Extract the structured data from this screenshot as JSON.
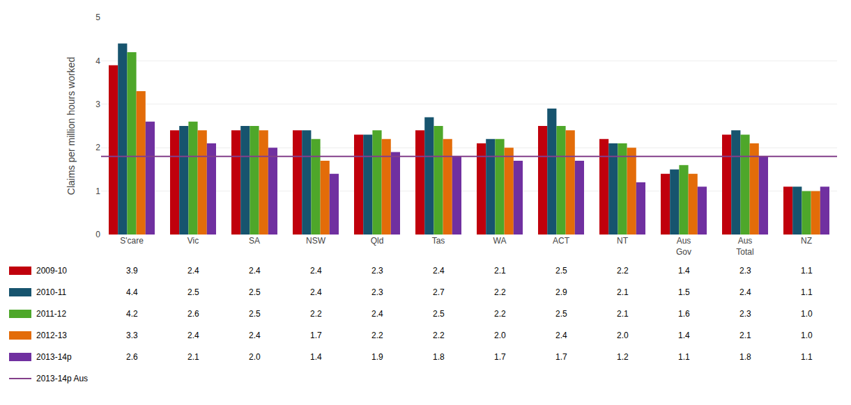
{
  "chart_data": {
    "type": "bar",
    "categories": [
      "S'care",
      "Vic",
      "SA",
      "NSW",
      "Qld",
      "Tas",
      "WA",
      "ACT",
      "NT",
      "Aus\nGov",
      "Aus\nTotal",
      "NZ"
    ],
    "series": [
      {
        "name": "2009-10",
        "color": "#C0000C",
        "values": [
          3.9,
          2.4,
          2.4,
          2.4,
          2.3,
          2.4,
          2.1,
          2.5,
          2.2,
          1.4,
          2.3,
          1.1
        ],
        "value_labels": [
          "3.9",
          "2.4",
          "2.4",
          "2.4",
          "2.3",
          "2.4",
          "2.1",
          "2.5",
          "2.2",
          "1.4",
          "2.3",
          "1.1"
        ]
      },
      {
        "name": "2010-11",
        "color": "#17546E",
        "values": [
          4.4,
          2.5,
          2.5,
          2.4,
          2.3,
          2.7,
          2.2,
          2.9,
          2.1,
          1.5,
          2.4,
          1.1
        ],
        "value_labels": [
          "4.4",
          "2.5",
          "2.5",
          "2.4",
          "2.3",
          "2.7",
          "2.2",
          "2.9",
          "2.1",
          "1.5",
          "2.4",
          "1.1"
        ]
      },
      {
        "name": "2011-12",
        "color": "#4EA72A",
        "values": [
          4.2,
          2.6,
          2.5,
          2.2,
          2.4,
          2.5,
          2.2,
          2.5,
          2.1,
          1.6,
          2.3,
          1.0
        ],
        "value_labels": [
          "4.2",
          "2.6",
          "2.5",
          "2.2",
          "2.4",
          "2.5",
          "2.2",
          "2.5",
          "2.1",
          "1.6",
          "2.3",
          "1.0"
        ]
      },
      {
        "name": "2012-13",
        "color": "#E36C09",
        "values": [
          3.3,
          2.4,
          2.4,
          1.7,
          2.2,
          2.2,
          2.0,
          2.4,
          2.0,
          1.4,
          2.1,
          1.0
        ],
        "value_labels": [
          "3.3",
          "2.4",
          "2.4",
          "1.7",
          "2.2",
          "2.2",
          "2.0",
          "2.4",
          "2.0",
          "1.4",
          "2.1",
          "1.0"
        ]
      },
      {
        "name": "2013-14p",
        "color": "#7030A0",
        "values": [
          2.6,
          2.1,
          2.0,
          1.4,
          1.9,
          1.8,
          1.7,
          1.7,
          1.2,
          1.1,
          1.8,
          1.1
        ],
        "value_labels": [
          "2.6",
          "2.1",
          "2.0",
          "1.4",
          "1.9",
          "1.8",
          "1.7",
          "1.7",
          "1.2",
          "1.1",
          "1.8",
          "1.1"
        ]
      }
    ],
    "reference_line": {
      "value": 1.8,
      "label": "2013-14p Aus",
      "color": "#833F8A"
    },
    "ylabel": "Claims per million hours worked",
    "ylim": [
      0,
      5
    ],
    "yticks": [
      0,
      1,
      2,
      3,
      4,
      5
    ],
    "grid": true
  }
}
